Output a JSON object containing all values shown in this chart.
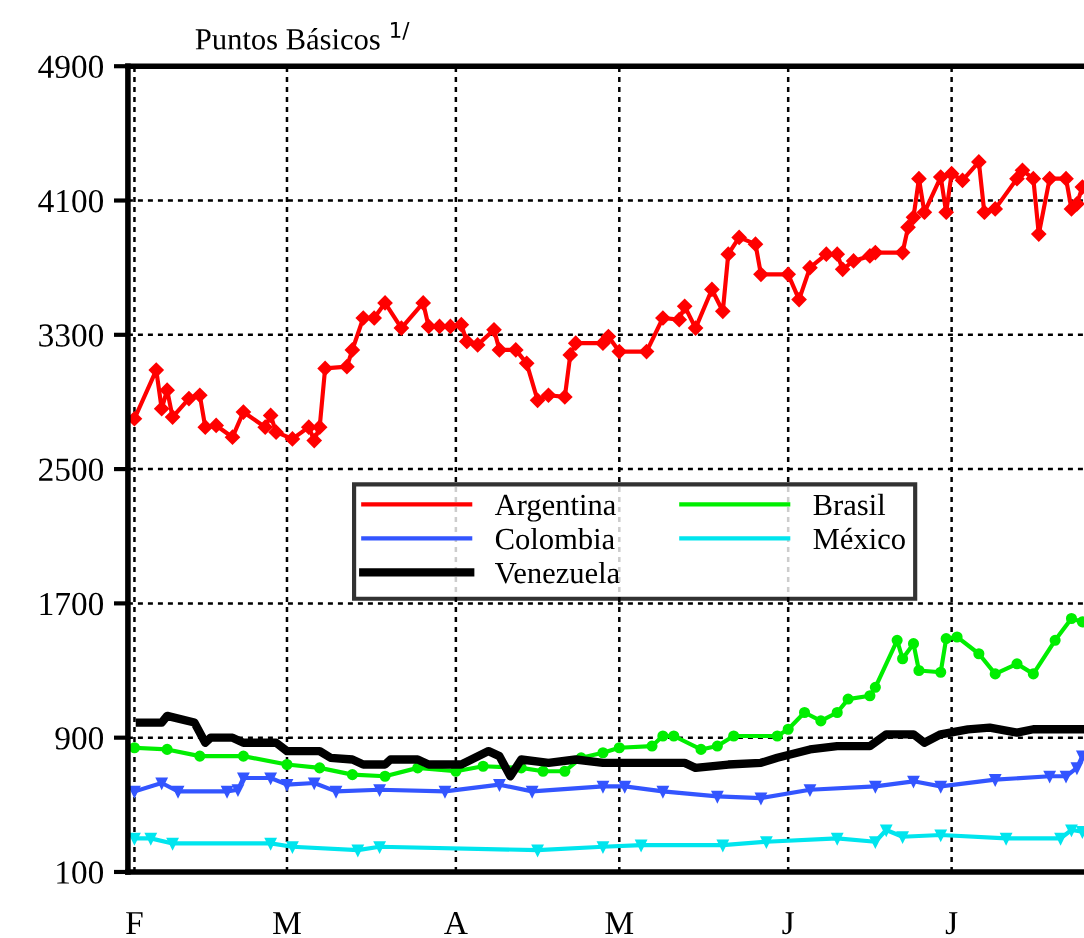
{
  "chart_data": {
    "type": "line",
    "title": "Puntos Básicos $^{1/}$",
    "categories": [
      "F",
      null,
      null,
      null,
      null,
      null,
      null,
      null,
      null,
      null,
      null,
      null,
      null,
      null,
      null,
      null,
      null,
      null,
      null,
      null,
      null,
      null,
      null,
      null,
      null,
      null,
      null,
      null,
      "M",
      null,
      null,
      null,
      null,
      null,
      null,
      null,
      null,
      null,
      null,
      null,
      null,
      null,
      null,
      null,
      null,
      null,
      null,
      null,
      null,
      null,
      null,
      null,
      null,
      null,
      null,
      null,
      null,
      null,
      null,
      "A",
      null,
      null,
      null,
      null,
      null,
      null,
      null,
      null,
      null,
      null,
      null,
      null,
      null,
      null,
      null,
      null,
      null,
      null,
      null,
      null,
      null,
      null,
      null,
      null,
      null,
      null,
      null,
      null,
      null,
      "M",
      null,
      null,
      null,
      null,
      null,
      null,
      null,
      null,
      null,
      null,
      null,
      null,
      null,
      null,
      null,
      null,
      null,
      null,
      null,
      null,
      null,
      null,
      null,
      null,
      null,
      null,
      null,
      null,
      null,
      null,
      "J",
      null,
      null,
      null,
      null,
      null,
      null,
      null,
      null,
      null,
      null,
      null,
      null,
      null,
      null,
      null,
      null,
      null,
      null,
      null,
      null,
      null,
      null,
      null,
      null,
      null,
      null,
      null,
      null,
      null,
      "J",
      null,
      null,
      null,
      null,
      null,
      null,
      null,
      null,
      null,
      null,
      null,
      null,
      null,
      null,
      null,
      null,
      null,
      null,
      null,
      null,
      null,
      null,
      null,
      null
    ],
    "ylim": [
      100,
      4900
    ],
    "yticks": [
      100,
      900,
      1700,
      2500,
      3300,
      4100,
      4900
    ],
    "grid": true,
    "legend": "center",
    "line_style": "solid",
    "series": [
      {
        "name": "Argentina",
        "color": "#ff0000",
        "marker": "diamond",
        "values": [
          2800,
          null,
          null,
          null,
          3090,
          2860,
          2970,
          2810,
          null,
          null,
          2920,
          null,
          2940,
          2750,
          null,
          2760,
          null,
          null,
          2690,
          null,
          2840,
          null,
          null,
          null,
          2750,
          2820,
          2720,
          null,
          null,
          2680,
          null,
          null,
          2750,
          2670,
          2750,
          3100,
          null,
          null,
          null,
          3110,
          3210,
          null,
          3400,
          null,
          3400,
          null,
          3490,
          null,
          null,
          3340,
          null,
          null,
          null,
          3490,
          3350,
          null,
          3350,
          null,
          3350,
          null,
          3360,
          3260,
          null,
          3240,
          null,
          null,
          3330,
          3210,
          null,
          null,
          3210,
          null,
          3130,
          null,
          2910,
          null,
          2940,
          null,
          null,
          2930,
          3180,
          3250,
          null,
          null,
          null,
          null,
          3250,
          3290,
          null,
          3200,
          null,
          null,
          null,
          null,
          3200,
          null,
          null,
          3400,
          null,
          null,
          3390,
          3470,
          null,
          3340,
          null,
          null,
          3570,
          null,
          3440,
          3780,
          null,
          3880,
          null,
          null,
          3840,
          3660,
          null,
          null,
          null,
          null,
          3660,
          null,
          3510,
          null,
          3700,
          null,
          null,
          3780,
          null,
          3780,
          3690,
          null,
          3740,
          null,
          null,
          3770,
          3790,
          null,
          null,
          null,
          null,
          3790,
          3940,
          4000,
          4230,
          4030,
          null,
          null,
          4240,
          4030,
          4260,
          null,
          4220,
          null,
          null,
          4330,
          4030,
          null,
          4050,
          null,
          null,
          null,
          4230,
          4280,
          null,
          4230,
          3900,
          null,
          4230,
          null,
          null,
          4230,
          4050,
          4080,
          4180
        ]
      },
      {
        "name": "Brasil",
        "color": "#00ee00",
        "marker": "circle",
        "values": [
          840,
          null,
          null,
          null,
          null,
          null,
          830,
          null,
          null,
          null,
          null,
          null,
          790,
          null,
          null,
          null,
          null,
          null,
          null,
          null,
          790,
          null,
          null,
          null,
          null,
          null,
          null,
          null,
          740,
          null,
          null,
          null,
          null,
          null,
          720,
          null,
          null,
          null,
          null,
          null,
          680,
          null,
          null,
          null,
          null,
          null,
          670,
          null,
          null,
          null,
          null,
          null,
          720,
          null,
          null,
          null,
          null,
          null,
          null,
          700,
          null,
          null,
          null,
          null,
          730,
          null,
          null,
          null,
          null,
          null,
          null,
          720,
          null,
          null,
          null,
          700,
          null,
          null,
          null,
          700,
          null,
          null,
          780,
          null,
          null,
          null,
          810,
          null,
          null,
          840,
          null,
          null,
          null,
          null,
          null,
          850,
          null,
          910,
          null,
          910,
          null,
          null,
          null,
          null,
          830,
          null,
          null,
          850,
          null,
          null,
          910,
          null,
          null,
          null,
          null,
          null,
          null,
          null,
          910,
          null,
          950,
          null,
          null,
          1050,
          null,
          null,
          1000,
          null,
          null,
          1050,
          null,
          1130,
          null,
          null,
          null,
          1150,
          1200,
          null,
          null,
          null,
          1480,
          1370,
          null,
          1460,
          1300,
          null,
          null,
          null,
          1290,
          1490,
          null,
          1500,
          null,
          null,
          null,
          1400,
          null,
          null,
          1280,
          null,
          null,
          null,
          1340,
          null,
          null,
          1280,
          null,
          null,
          null,
          1480,
          null,
          null,
          1610,
          null,
          1590
        ]
      },
      {
        "name": "Colombia",
        "color": "#3355ff",
        "marker": "triangle",
        "values": [
          580,
          null,
          null,
          null,
          null,
          630,
          null,
          null,
          580,
          null,
          null,
          null,
          null,
          null,
          null,
          null,
          null,
          580,
          null,
          590,
          660,
          null,
          null,
          null,
          null,
          660,
          null,
          null,
          620,
          null,
          null,
          null,
          null,
          630,
          null,
          null,
          null,
          580,
          null,
          null,
          null,
          null,
          null,
          null,
          null,
          590,
          null,
          null,
          null,
          null,
          null,
          null,
          null,
          null,
          null,
          null,
          null,
          580,
          null,
          null,
          null,
          null,
          null,
          null,
          null,
          null,
          null,
          620,
          null,
          null,
          null,
          null,
          null,
          580,
          null,
          null,
          null,
          null,
          null,
          null,
          null,
          null,
          null,
          null,
          null,
          null,
          610,
          null,
          null,
          null,
          610,
          null,
          null,
          null,
          null,
          null,
          null,
          580,
          null,
          null,
          null,
          null,
          null,
          null,
          null,
          null,
          null,
          550,
          null,
          null,
          null,
          null,
          null,
          null,
          null,
          540,
          null,
          null,
          null,
          null,
          null,
          null,
          null,
          null,
          590,
          null,
          null,
          null,
          null,
          null,
          null,
          null,
          null,
          null,
          null,
          null,
          610,
          null,
          null,
          null,
          null,
          null,
          null,
          640,
          null,
          null,
          null,
          null,
          610,
          null,
          null,
          null,
          null,
          null,
          null,
          null,
          null,
          null,
          650,
          null,
          null,
          null,
          null,
          null,
          null,
          null,
          null,
          null,
          670,
          null,
          null,
          670,
          null,
          720,
          790
        ]
      },
      {
        "name": "México",
        "color": "#00e5ee",
        "marker": "triangle",
        "values": [
          300,
          null,
          null,
          300,
          null,
          null,
          null,
          270,
          null,
          null,
          null,
          null,
          null,
          null,
          null,
          null,
          null,
          null,
          null,
          null,
          null,
          null,
          null,
          null,
          null,
          270,
          null,
          null,
          null,
          250,
          null,
          null,
          null,
          null,
          null,
          null,
          null,
          null,
          null,
          null,
          null,
          230,
          null,
          null,
          null,
          250,
          null,
          null,
          null,
          null,
          null,
          null,
          null,
          null,
          null,
          null,
          null,
          null,
          null,
          null,
          null,
          null,
          null,
          null,
          null,
          null,
          null,
          null,
          null,
          null,
          null,
          null,
          null,
          null,
          230,
          null,
          null,
          null,
          null,
          null,
          null,
          null,
          null,
          null,
          null,
          null,
          250,
          null,
          null,
          null,
          null,
          null,
          null,
          260,
          null,
          null,
          null,
          null,
          null,
          null,
          null,
          null,
          null,
          null,
          null,
          null,
          null,
          null,
          260,
          null,
          null,
          null,
          null,
          null,
          null,
          null,
          280,
          null,
          null,
          null,
          null,
          null,
          null,
          null,
          null,
          null,
          null,
          null,
          null,
          300,
          null,
          null,
          null,
          null,
          null,
          null,
          280,
          null,
          350,
          null,
          null,
          310,
          null,
          null,
          null,
          null,
          null,
          null,
          320,
          null,
          null,
          null,
          null,
          null,
          null,
          null,
          null,
          null,
          null,
          null,
          300,
          null,
          null,
          null,
          null,
          null,
          null,
          null,
          null,
          null,
          300,
          null,
          350,
          null,
          340
        ]
      },
      {
        "name": "Venezuela",
        "color": "#000000",
        "marker": "none",
        "values": [
          null,
          990,
          null,
          null,
          null,
          990,
          1030,
          null,
          null,
          null,
          null,
          990,
          null,
          870,
          900,
          null,
          null,
          null,
          900,
          null,
          870,
          null,
          null,
          null,
          null,
          null,
          870,
          null,
          820,
          null,
          null,
          null,
          null,
          null,
          820,
          null,
          780,
          null,
          null,
          null,
          770,
          null,
          740,
          null,
          null,
          null,
          740,
          770,
          null,
          null,
          null,
          null,
          770,
          null,
          740,
          null,
          null,
          null,
          null,
          null,
          740,
          null,
          null,
          null,
          null,
          820,
          null,
          790,
          null,
          670,
          null,
          770,
          null,
          null,
          null,
          null,
          750,
          null,
          null,
          null,
          null,
          770,
          null,
          null,
          null,
          null,
          750,
          null,
          null,
          null,
          null,
          null,
          null,
          null,
          null,
          null,
          null,
          null,
          null,
          null,
          null,
          750,
          null,
          720,
          null,
          null,
          null,
          null,
          null,
          740,
          null,
          null,
          null,
          null,
          null,
          750,
          null,
          null,
          780,
          null,
          null,
          null,
          null,
          null,
          830,
          null,
          null,
          null,
          null,
          850,
          null,
          null,
          null,
          null,
          null,
          850,
          null,
          null,
          920,
          null,
          null,
          null,
          null,
          920,
          null,
          870,
          null,
          null,
          920,
          null,
          null,
          null,
          null,
          950,
          null,
          null,
          null,
          960,
          null,
          null,
          null,
          null,
          930,
          null,
          null,
          950,
          null,
          null,
          null,
          null,
          null,
          null,
          null,
          null,
          950
        ]
      }
    ]
  }
}
